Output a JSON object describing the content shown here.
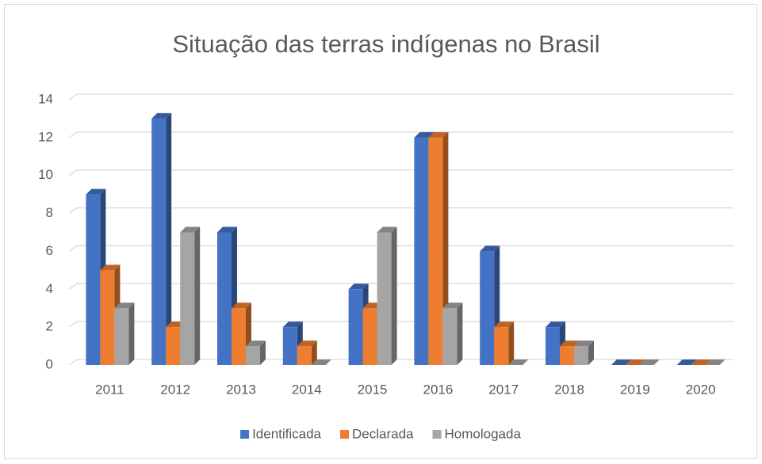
{
  "chart_data": {
    "type": "bar3d",
    "title": "Situação das terras indígenas no Brasil",
    "categories": [
      "2011",
      "2012",
      "2013",
      "2014",
      "2015",
      "2016",
      "2017",
      "2018",
      "2019",
      "2020"
    ],
    "series": [
      {
        "name": "Identificada",
        "color": "#4472c4",
        "values": [
          9,
          13,
          7,
          2,
          4,
          12,
          6,
          2,
          0,
          0
        ]
      },
      {
        "name": "Declarada",
        "color": "#ed7d31",
        "values": [
          5,
          2,
          3,
          1,
          3,
          12,
          2,
          1,
          0,
          0
        ]
      },
      {
        "name": "Homologada",
        "color": "#a5a5a5",
        "values": [
          3,
          7,
          1,
          0,
          7,
          3,
          0,
          1,
          0,
          0
        ]
      }
    ],
    "ylim": [
      0,
      14
    ],
    "yticks": [
      0,
      2,
      4,
      6,
      8,
      10,
      12,
      14
    ],
    "grid": true,
    "legend": "bottom"
  }
}
